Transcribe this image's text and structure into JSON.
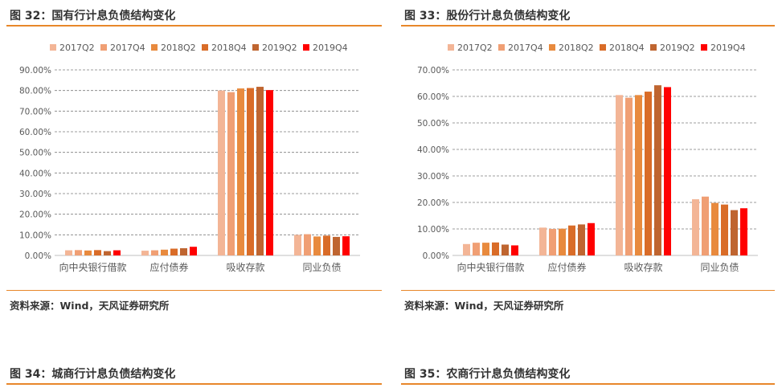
{
  "figures": [
    {
      "title": "图 32：国有行计息负债结构变化",
      "source": "资料来源：Wind，天风证券研究所",
      "chart_data": {
        "type": "bar",
        "categories": [
          "向中央银行借款",
          "应付债券",
          "吸收存款",
          "同业负债"
        ],
        "series": [
          {
            "name": "2017Q2",
            "values": [
              2.5,
              2.3,
              80.0,
              10.0
            ]
          },
          {
            "name": "2017Q4",
            "values": [
              2.6,
              2.5,
              79.2,
              10.3
            ]
          },
          {
            "name": "2018Q2",
            "values": [
              2.4,
              2.8,
              81.0,
              9.2
            ]
          },
          {
            "name": "2018Q4",
            "values": [
              2.6,
              3.3,
              81.2,
              9.6
            ]
          },
          {
            "name": "2019Q2",
            "values": [
              2.1,
              3.5,
              81.8,
              9.0
            ]
          },
          {
            "name": "2019Q4",
            "values": [
              2.5,
              4.2,
              80.2,
              9.3
            ]
          }
        ],
        "ylim": [
          0,
          90
        ],
        "yticks": [
          "0.00%",
          "10.00%",
          "20.00%",
          "30.00%",
          "40.00%",
          "50.00%",
          "60.00%",
          "70.00%",
          "80.00%",
          "90.00%"
        ],
        "ytick_values": [
          0,
          10,
          20,
          30,
          40,
          50,
          60,
          70,
          80,
          90
        ],
        "grid": true,
        "legend_position": "top"
      }
    },
    {
      "title": "图 33：股份行计息负债结构变化",
      "source": "资料来源：Wind，天风证券研究所",
      "chart_data": {
        "type": "bar",
        "categories": [
          "向中央银行借款",
          "应付债券",
          "吸收存款",
          "同业负债"
        ],
        "series": [
          {
            "name": "2017Q2",
            "values": [
              4.3,
              10.5,
              60.5,
              21.2
            ]
          },
          {
            "name": "2017Q4",
            "values": [
              4.8,
              10.0,
              59.5,
              22.2
            ]
          },
          {
            "name": "2018Q2",
            "values": [
              4.8,
              10.1,
              60.5,
              19.8
            ]
          },
          {
            "name": "2018Q4",
            "values": [
              4.9,
              11.3,
              61.8,
              19.2
            ]
          },
          {
            "name": "2019Q2",
            "values": [
              4.1,
              11.7,
              64.2,
              17.1
            ]
          },
          {
            "name": "2019Q4",
            "values": [
              3.8,
              12.2,
              63.5,
              17.8
            ]
          }
        ],
        "ylim": [
          0,
          70
        ],
        "yticks": [
          "0.00%",
          "10.00%",
          "20.00%",
          "30.00%",
          "40.00%",
          "50.00%",
          "60.00%",
          "70.00%"
        ],
        "ytick_values": [
          0,
          10,
          20,
          30,
          40,
          50,
          60,
          70
        ],
        "grid": true,
        "legend_position": "top"
      }
    },
    {
      "title": "图 34：城商行计息负债结构变化"
    },
    {
      "title": "图 35：农商行计息负债结构变化"
    }
  ],
  "colors": {
    "accent": "#e8872a",
    "series": [
      "#f3b596",
      "#f09f74",
      "#e88a3e",
      "#d96c28",
      "#bf6530",
      "#ff0000"
    ],
    "grid": "#7f7f7f",
    "axis": "#bfbfbf"
  }
}
